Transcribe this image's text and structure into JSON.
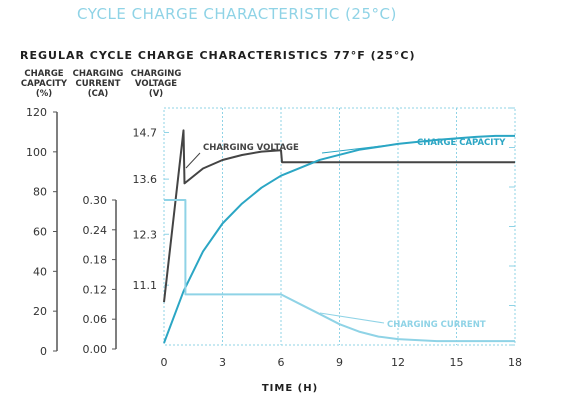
{
  "page_header": "CYCLE CHARGE CHARACTERISTIC (25°C)",
  "chart_data": {
    "type": "line",
    "title": "REGULAR CYCLE CHARGE CHARACTERISTICS 77°F (25°C)",
    "xlabel": "TIME (H)",
    "xlim": [
      0,
      18
    ],
    "x_ticks": [
      0,
      3,
      6,
      9,
      12,
      15,
      18
    ],
    "axes": [
      {
        "id": "capacity",
        "header": [
          "CHARGE",
          "CAPACITY",
          "(%)"
        ],
        "ylim": [
          0,
          120
        ],
        "ticks": [
          "0",
          "20",
          "40",
          "60",
          "80",
          "100",
          "120"
        ]
      },
      {
        "id": "current",
        "header": [
          "CHARGING",
          "CURRENT",
          "(CA)"
        ],
        "ylim": [
          0,
          0.3
        ],
        "ticks": [
          "0.00",
          "0.06",
          "0.12",
          "0.18",
          "0.24",
          "0.30"
        ]
      },
      {
        "id": "voltage",
        "header": [
          "CHARGING",
          "VOLTAGE",
          "(V)"
        ],
        "ylim": [
          9.5,
          14.9
        ],
        "ticks": [
          "11.1",
          "12.3",
          "13.6",
          "14.7"
        ]
      }
    ],
    "grid": "dotted vertical lines at x ticks",
    "series": [
      {
        "name": "CHARGING VOLTAGE",
        "axis": "voltage",
        "color": "#444444",
        "x": [
          0,
          1,
          1.05,
          2,
          3,
          4,
          5,
          6,
          6.05,
          9,
          12,
          15,
          18
        ],
        "y": [
          10.7,
          14.75,
          13.5,
          13.85,
          14.05,
          14.17,
          14.25,
          14.28,
          14.0,
          14.0,
          14.0,
          14.0,
          14.0
        ]
      },
      {
        "name": "CHARGE CAPACITY",
        "axis": "capacity",
        "color": "#2ba6c4",
        "x": [
          0,
          1,
          2,
          3,
          4,
          5,
          6,
          8,
          10,
          12,
          14,
          16,
          17,
          18
        ],
        "y": [
          4,
          30,
          50,
          64,
          74,
          82,
          88,
          96,
          101,
          104,
          106,
          107.5,
          108,
          108
        ]
      },
      {
        "name": "CHARGING CURRENT",
        "axis": "current",
        "color": "#8fd3e6",
        "x": [
          0,
          1.1,
          1.1,
          6,
          7,
          8,
          9,
          10,
          11,
          12,
          14,
          18
        ],
        "y": [
          0.3,
          0.3,
          0.11,
          0.11,
          0.09,
          0.07,
          0.05,
          0.035,
          0.025,
          0.02,
          0.016,
          0.016
        ]
      }
    ]
  }
}
